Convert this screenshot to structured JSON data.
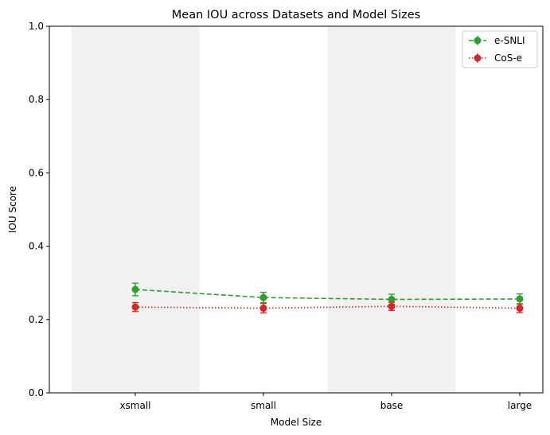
{
  "chart_data": {
    "type": "line",
    "title": "Mean IOU across Datasets and Model Sizes",
    "xlabel": "Model Size",
    "ylabel": "IOU Score",
    "categories": [
      "xsmall",
      "small",
      "base",
      "large"
    ],
    "ylim": [
      0,
      1
    ],
    "yticks": [
      "0.0",
      "0.2",
      "0.4",
      "0.6",
      "0.8",
      "1.0"
    ],
    "grid": false,
    "legend_position": "top-right",
    "shaded_bands": [
      "xsmall",
      "base"
    ],
    "series": [
      {
        "name": "e-SNLI",
        "values": [
          0.282,
          0.26,
          0.255,
          0.256
        ],
        "errors": [
          0.017,
          0.014,
          0.014,
          0.014
        ],
        "color": "#2ca02c",
        "line_style": "dashed"
      },
      {
        "name": "CoS-e",
        "values": [
          0.234,
          0.231,
          0.236,
          0.231
        ],
        "errors": [
          0.012,
          0.013,
          0.011,
          0.012
        ],
        "color": "#d62728",
        "line_style": "dotted"
      }
    ]
  }
}
